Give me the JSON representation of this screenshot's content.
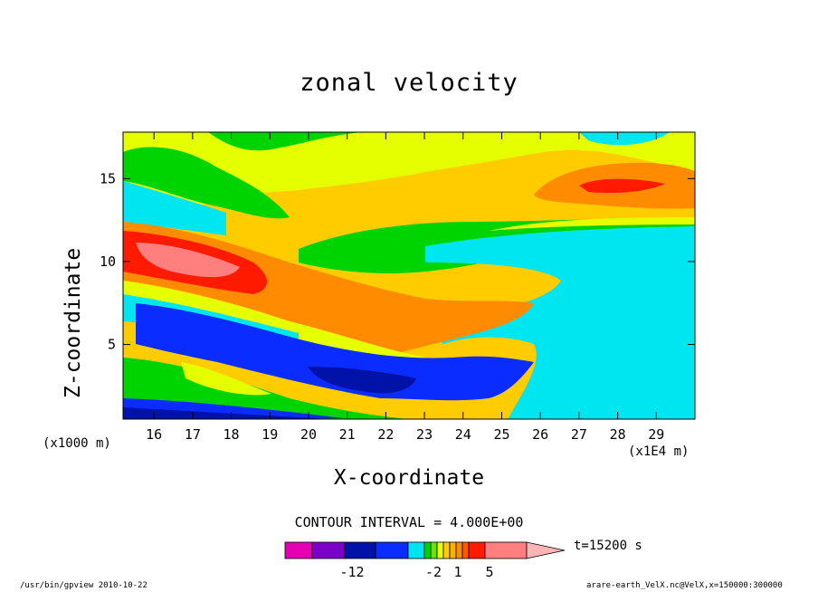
{
  "title": "zonal velocity",
  "xlabel": "X-coordinate",
  "ylabel": "Z-coordinate",
  "x_unit_left": "(x1000 m)",
  "x_unit_right": "(x1E4 m)",
  "contour_interval": "CONTOUR INTERVAL = 4.000E+00",
  "time_label": "t=15200 s",
  "footer_left": "/usr/bin/gpview  2010-10-22",
  "footer_right": "arare-earth_VelX.nc@VelX,x=150000:300000",
  "colorbar": {
    "colors": [
      "#e600b4",
      "#7b00c8",
      "#0012a8",
      "#0a2cff",
      "#00e6f0",
      "#00d400",
      "#66e600",
      "#e6ff00",
      "#ffcc00",
      "#ffb000",
      "#ff8c00",
      "#ff5a00",
      "#ff1a00",
      "#ff7f7f",
      "#ffb4b4"
    ],
    "labels": [
      "-12",
      "-2",
      "1",
      "5"
    ]
  },
  "chart_data": {
    "type": "contour",
    "title": "zonal velocity",
    "xlabel": "X-coordinate",
    "ylabel": "Z-coordinate",
    "xlim": [
      15.2,
      30
    ],
    "ylim": [
      0.5,
      17.8
    ],
    "xticks": [
      16,
      17,
      18,
      19,
      20,
      21,
      22,
      23,
      24,
      25,
      26,
      27,
      28,
      29
    ],
    "yticks": [
      5,
      10,
      15
    ],
    "contour_interval": 4.0,
    "time": "t=15200 s"
  }
}
